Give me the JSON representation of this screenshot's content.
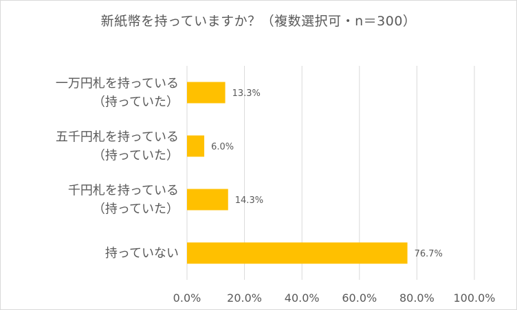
{
  "chart_data": {
    "type": "bar",
    "orientation": "horizontal",
    "title": "新紙幣を持っていますか？（複数選択可・n＝300）",
    "categories": [
      [
        "一万円札を持っている",
        "（持っていた）"
      ],
      [
        "五千円札を持っている",
        "（持っていた）"
      ],
      [
        "千円札を持っている",
        "（持っていた）"
      ],
      [
        "持っていない"
      ]
    ],
    "values": [
      13.3,
      6.0,
      14.3,
      76.7
    ],
    "value_labels": [
      "13.3%",
      "6.0%",
      "14.3%",
      "76.7%"
    ],
    "xlim": [
      0,
      100
    ],
    "xticks": [
      0,
      20,
      40,
      60,
      80,
      100
    ],
    "xtick_labels": [
      "0.0%",
      "20.0%",
      "40.0%",
      "60.0%",
      "80.0%",
      "100.0%"
    ],
    "grid": "vertical",
    "legend": "none",
    "colors": {
      "bar": "#FFC000",
      "grid": "#D9D9D9",
      "text": "#595959"
    }
  }
}
